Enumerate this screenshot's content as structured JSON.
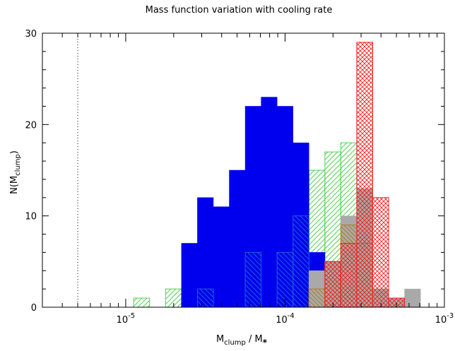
{
  "chart_data": {
    "type": "bar",
    "title": "Mass function variation with cooling rate",
    "xlabel": {
      "main": "M",
      "sub": "clump",
      "mid": " / M",
      "star": "*"
    },
    "ylabel": {
      "main": "N(M",
      "sub": "clump",
      "end": ")"
    },
    "x_scale": "log",
    "xlim": [
      3e-06,
      0.001
    ],
    "ylim": [
      0,
      30
    ],
    "x_ticks": [
      {
        "base": "10",
        "exp": "-5",
        "value": 1e-05
      },
      {
        "base": "10",
        "exp": "-4",
        "value": 0.0001
      },
      {
        "base": "10",
        "exp": "-3",
        "value": 0.001
      }
    ],
    "y_ticks": [
      "0",
      "10",
      "20",
      "30"
    ],
    "reference_line_x": 5e-06,
    "bin_edges_log10": [
      -5.05,
      -4.95,
      -4.85,
      -4.75,
      -4.65,
      -4.55,
      -4.45,
      -4.35,
      -4.25,
      -4.15,
      -4.05,
      -3.95,
      -3.85,
      -3.75,
      -3.65,
      -3.55,
      -3.45,
      -3.35,
      -3.25,
      -3.15
    ],
    "series": [
      {
        "style": "hatch-left",
        "color": "#4fd24f",
        "bins_log10": [
          -4.9,
          -4.7,
          -4.6,
          -4.5,
          -4.4,
          -4.3,
          -4.2,
          -4.1,
          -4.0,
          -3.9,
          -3.8,
          -3.7,
          -3.6,
          -3.5,
          -3.4
        ],
        "values": [
          1,
          2,
          1,
          2,
          2,
          0,
          6,
          4,
          5,
          3,
          15,
          17,
          18,
          8,
          2
        ]
      },
      {
        "style": "solid",
        "color": "#0000ee",
        "bins_log10": [
          -4.6,
          -4.5,
          -4.4,
          -4.3,
          -4.2,
          -4.1,
          -4.0,
          -3.9,
          -3.8
        ],
        "values": [
          7,
          12,
          11,
          15,
          22,
          23,
          22,
          18,
          6
        ]
      },
      {
        "style": "hatch-right",
        "color": "#2060d8",
        "bins_log10": [
          -4.5,
          -4.2,
          -4.0,
          -3.9
        ],
        "values": [
          2,
          6,
          6,
          10
        ]
      },
      {
        "style": "solid",
        "color": "#a9a9a9",
        "bins_log10": [
          -3.8,
          -3.7,
          -3.6,
          -3.5,
          -3.4,
          -3.3,
          -3.2
        ],
        "values": [
          4,
          5,
          10,
          13,
          2,
          1,
          2
        ]
      },
      {
        "style": "hatch-right",
        "color": "#b07a1a",
        "bins_log10": [
          -3.8,
          -3.7,
          -3.6,
          -3.5
        ],
        "values": [
          2,
          5,
          9,
          7
        ]
      },
      {
        "style": "cross",
        "color": "#ee2020",
        "bins_log10": [
          -3.7,
          -3.6,
          -3.5,
          -3.4,
          -3.3
        ],
        "values": [
          5,
          7,
          29,
          12,
          1
        ]
      }
    ]
  }
}
